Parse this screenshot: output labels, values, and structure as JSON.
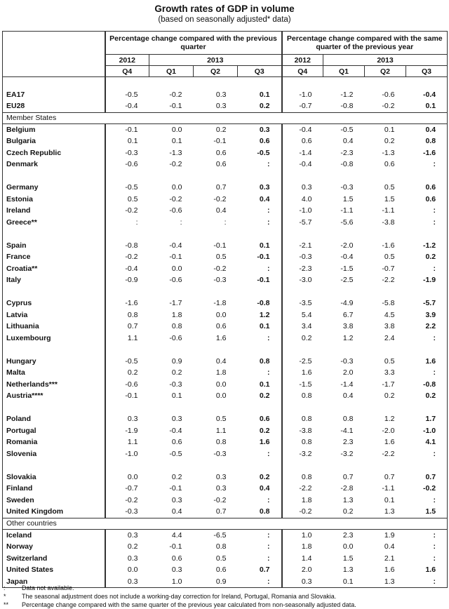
{
  "header": {
    "title": "Growth rates of GDP in volume",
    "subtitle": "(based on seasonally adjusted* data)"
  },
  "table": {
    "column_groups": [
      {
        "title": "Percentage change compared with the previous quarter",
        "years": [
          "2012",
          "2013"
        ],
        "quarters": [
          "Q4",
          "Q1",
          "Q2",
          "Q3"
        ]
      },
      {
        "title": "Percentage change compared with the same quarter of the previous year",
        "years": [
          "2012",
          "2013"
        ],
        "quarters": [
          "Q4",
          "Q1",
          "Q2",
          "Q3"
        ]
      }
    ],
    "sections": [
      {
        "groups": [
          [
            {
              "label": "EA17",
              "values": [
                "-0.5",
                "-0.2",
                "0.3",
                "0.1",
                "-1.0",
                "-1.2",
                "-0.6",
                "-0.4"
              ]
            },
            {
              "label": "EU28",
              "values": [
                "-0.4",
                "-0.1",
                "0.3",
                "0.2",
                "-0.7",
                "-0.8",
                "-0.2",
                "0.1"
              ]
            }
          ]
        ]
      },
      {
        "heading": "Member States",
        "groups": [
          [
            {
              "label": "Belgium",
              "values": [
                "-0.1",
                "0.0",
                "0.2",
                "0.3",
                "-0.4",
                "-0.5",
                "0.1",
                "0.4"
              ]
            },
            {
              "label": "Bulgaria",
              "values": [
                "0.1",
                "0.1",
                "-0.1",
                "0.6",
                "0.6",
                "0.4",
                "0.2",
                "0.8"
              ]
            },
            {
              "label": "Czech Republic",
              "values": [
                "-0.3",
                "-1.3",
                "0.6",
                "-0.5",
                "-1.4",
                "-2.3",
                "-1.3",
                "-1.6"
              ]
            },
            {
              "label": "Denmark",
              "values": [
                "-0.6",
                "-0.2",
                "0.6",
                ":",
                "-0.4",
                "-0.8",
                "0.6",
                ":"
              ]
            }
          ],
          [
            {
              "label": "Germany",
              "values": [
                "-0.5",
                "0.0",
                "0.7",
                "0.3",
                "0.3",
                "-0.3",
                "0.5",
                "0.6"
              ]
            },
            {
              "label": "Estonia",
              "values": [
                "0.5",
                "-0.2",
                "-0.2",
                "0.4",
                "4.0",
                "1.5",
                "1.5",
                "0.6"
              ]
            },
            {
              "label": "Ireland",
              "values": [
                "-0.2",
                "-0.6",
                "0.4",
                ":",
                "-1.0",
                "-1.1",
                "-1.1",
                ":"
              ]
            },
            {
              "label": "Greece**",
              "values": [
                ":",
                ":",
                ":",
                ":",
                "-5.7",
                "-5.6",
                "-3.8",
                ":"
              ]
            }
          ],
          [
            {
              "label": "Spain",
              "values": [
                "-0.8",
                "-0.4",
                "-0.1",
                "0.1",
                "-2.1",
                "-2.0",
                "-1.6",
                "-1.2"
              ]
            },
            {
              "label": "France",
              "values": [
                "-0.2",
                "-0.1",
                "0.5",
                "-0.1",
                "-0.3",
                "-0.4",
                "0.5",
                "0.2"
              ]
            },
            {
              "label": "Croatia**",
              "values": [
                "-0.4",
                "0.0",
                "-0.2",
                ":",
                "-2.3",
                "-1.5",
                "-0.7",
                ":"
              ]
            },
            {
              "label": "Italy",
              "values": [
                "-0.9",
                "-0.6",
                "-0.3",
                "-0.1",
                "-3.0",
                "-2.5",
                "-2.2",
                "-1.9"
              ]
            }
          ],
          [
            {
              "label": "Cyprus",
              "values": [
                "-1.6",
                "-1.7",
                "-1.8",
                "-0.8",
                "-3.5",
                "-4.9",
                "-5.8",
                "-5.7"
              ]
            },
            {
              "label": "Latvia",
              "values": [
                "0.8",
                "1.8",
                "0.0",
                "1.2",
                "5.4",
                "6.7",
                "4.5",
                "3.9"
              ]
            },
            {
              "label": "Lithuania",
              "values": [
                "0.7",
                "0.8",
                "0.6",
                "0.1",
                "3.4",
                "3.8",
                "3.8",
                "2.2"
              ]
            },
            {
              "label": "Luxembourg",
              "values": [
                "1.1",
                "-0.6",
                "1.6",
                ":",
                "0.2",
                "1.2",
                "2.4",
                ":"
              ]
            }
          ],
          [
            {
              "label": "Hungary",
              "values": [
                "-0.5",
                "0.9",
                "0.4",
                "0.8",
                "-2.5",
                "-0.3",
                "0.5",
                "1.6"
              ]
            },
            {
              "label": "Malta",
              "values": [
                "0.2",
                "0.2",
                "1.8",
                ":",
                "1.6",
                "2.0",
                "3.3",
                ":"
              ]
            },
            {
              "label": "Netherlands***",
              "values": [
                "-0.6",
                "-0.3",
                "0.0",
                "0.1",
                "-1.5",
                "-1.4",
                "-1.7",
                "-0.8"
              ]
            },
            {
              "label": "Austria****",
              "values": [
                "-0.1",
                "0.1",
                "0.0",
                "0.2",
                "0.8",
                "0.4",
                "0.2",
                "0.2"
              ]
            }
          ],
          [
            {
              "label": "Poland",
              "values": [
                "0.3",
                "0.3",
                "0.5",
                "0.6",
                "0.8",
                "0.8",
                "1.2",
                "1.7"
              ]
            },
            {
              "label": "Portugal",
              "values": [
                "-1.9",
                "-0.4",
                "1.1",
                "0.2",
                "-3.8",
                "-4.1",
                "-2.0",
                "-1.0"
              ]
            },
            {
              "label": "Romania",
              "values": [
                "1.1",
                "0.6",
                "0.8",
                "1.6",
                "0.8",
                "2.3",
                "1.6",
                "4.1"
              ]
            },
            {
              "label": "Slovenia",
              "values": [
                "-1.0",
                "-0.5",
                "-0.3",
                ":",
                "-3.2",
                "-3.2",
                "-2.2",
                ":"
              ]
            }
          ],
          [
            {
              "label": "Slovakia",
              "values": [
                "0.0",
                "0.2",
                "0.3",
                "0.2",
                "0.8",
                "0.7",
                "0.7",
                "0.7"
              ]
            },
            {
              "label": "Finland",
              "values": [
                "-0.7",
                "-0.1",
                "0.3",
                "0.4",
                "-2.2",
                "-2.8",
                "-1.1",
                "-0.2"
              ]
            },
            {
              "label": "Sweden",
              "values": [
                "-0.2",
                "0.3",
                "-0.2",
                ":",
                "1.8",
                "1.3",
                "0.1",
                ":"
              ]
            },
            {
              "label": "United Kingdom",
              "values": [
                "-0.3",
                "0.4",
                "0.7",
                "0.8",
                "-0.2",
                "0.2",
                "1.3",
                "1.5"
              ]
            }
          ]
        ]
      },
      {
        "heading": "Other countries",
        "groups": [
          [
            {
              "label": "Iceland",
              "values": [
                "0.3",
                "4.4",
                "-6.5",
                ":",
                "1.0",
                "2.3",
                "1.9",
                ":"
              ]
            },
            {
              "label": "Norway",
              "values": [
                "0.2",
                "-0.1",
                "0.8",
                ":",
                "1.8",
                "0.0",
                "0.4",
                ":"
              ]
            },
            {
              "label": "Switzerland",
              "values": [
                "0.3",
                "0.6",
                "0.5",
                ":",
                "1.4",
                "1.5",
                "2.1",
                ":"
              ]
            },
            {
              "label": "United States",
              "values": [
                "0.0",
                "0.3",
                "0.6",
                "0.7",
                "2.0",
                "1.3",
                "1.6",
                "1.6"
              ]
            },
            {
              "label": "Japan",
              "values": [
                "0.3",
                "1.0",
                "0.9",
                ":",
                "0.3",
                "0.1",
                "1.3",
                ":"
              ]
            }
          ]
        ]
      }
    ]
  },
  "footnotes": [
    {
      "symbol": ":",
      "text": "Data not available."
    },
    {
      "symbol": "*",
      "text": "The seasonal adjustment does not include a working-day correction for Ireland, Portugal, Romania and Slovakia."
    },
    {
      "symbol": "**",
      "text": "Percentage change compared with the same quarter of the previous year calculated from non-seasonally adjusted data."
    }
  ]
}
